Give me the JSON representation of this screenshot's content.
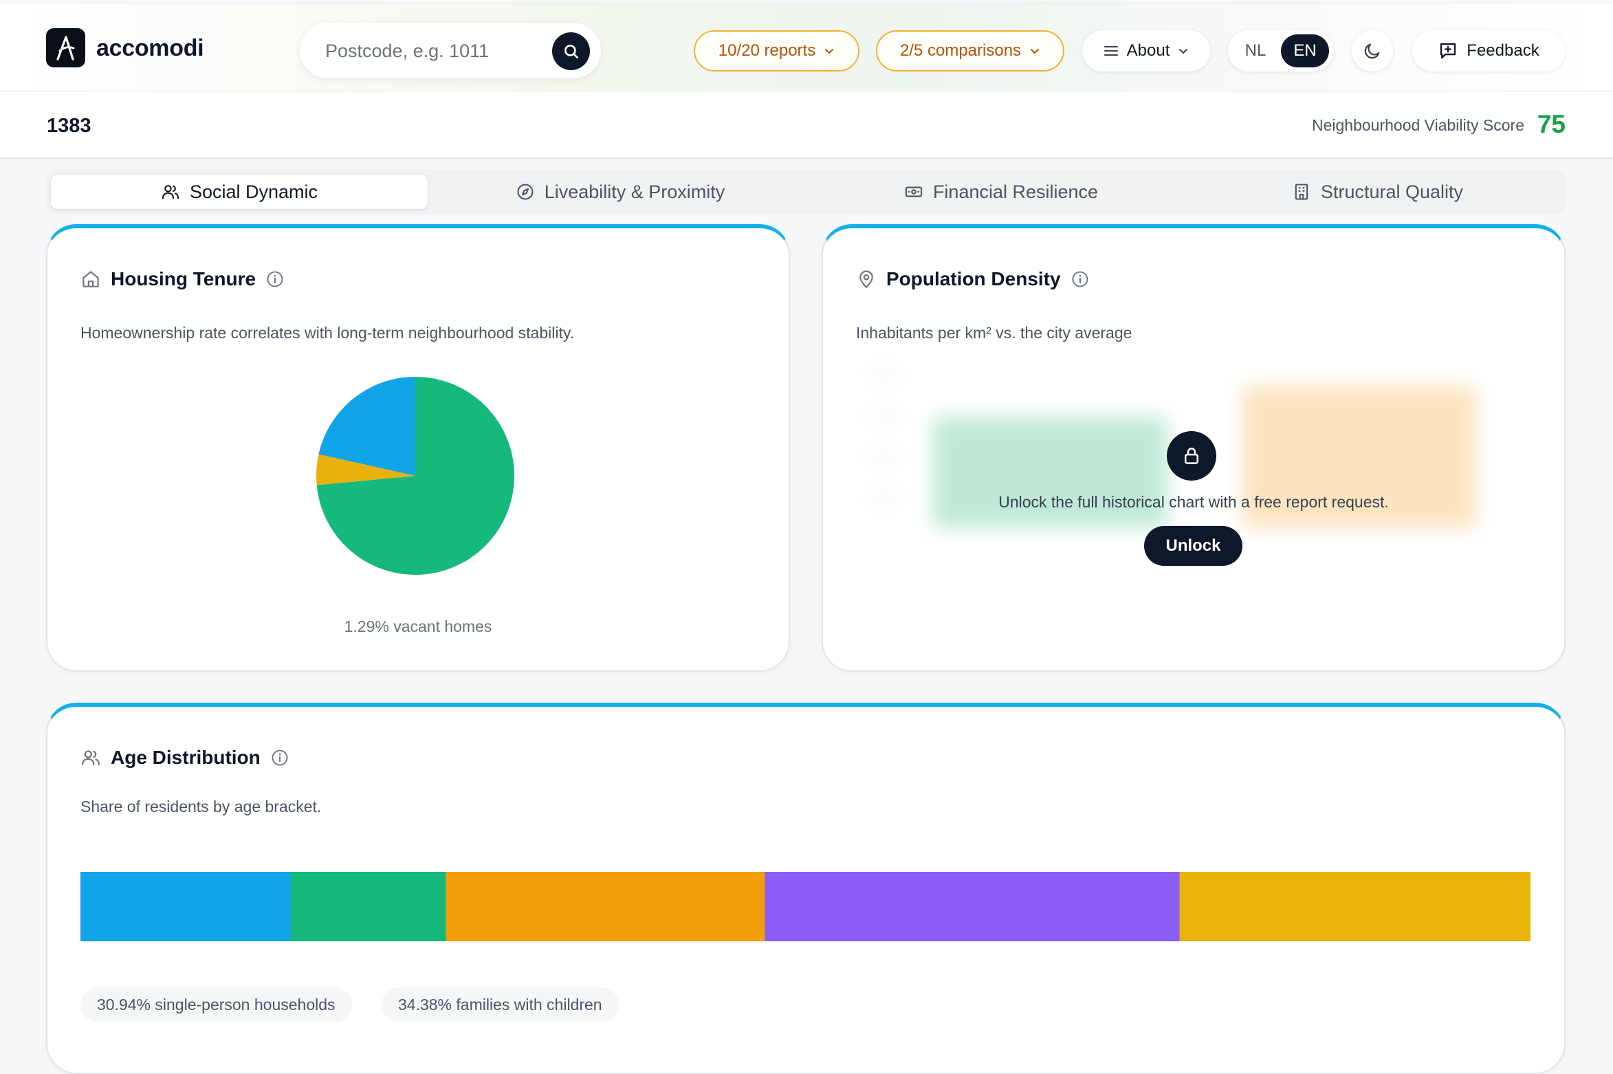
{
  "header": {
    "brand": "accomodi",
    "search_placeholder": "Postcode, e.g. 1011",
    "reports_label": "10/20 reports",
    "comparisons_label": "2/5 comparisons",
    "about_label": "About",
    "lang_nl": "NL",
    "lang_en": "EN",
    "feedback_label": "Feedback"
  },
  "subheader": {
    "postcode": "1383",
    "score_label": "Neighbourhood Viability Score",
    "score_value": "75"
  },
  "tabs": [
    {
      "label": "Social Dynamic",
      "icon": "users-icon",
      "active": true
    },
    {
      "label": "Liveability & Proximity",
      "icon": "compass-icon",
      "active": false
    },
    {
      "label": "Financial Resilience",
      "icon": "banknote-icon",
      "active": false
    },
    {
      "label": "Structural Quality",
      "icon": "building-icon",
      "active": false
    }
  ],
  "housing": {
    "title": "Housing Tenure",
    "description": "Homeownership rate correlates with long-term neighbourhood stability.",
    "footnote": "1.29% vacant homes"
  },
  "population": {
    "title": "Population Density",
    "description": "Inhabitants per km² vs. the city average",
    "lock_message": "Unlock the full historical chart with a free report request.",
    "unlock_label": "Unlock"
  },
  "age": {
    "title": "Age Distribution",
    "description": "Share of residents by age bracket.",
    "chip_single": "30.94% single-person households",
    "chip_families": "34.38% families with children"
  },
  "colors": {
    "accent": "#12b0eb",
    "score_green": "#16a34a",
    "pie_green": "#16b97c",
    "pie_blue": "#12a4e8",
    "pie_yellow": "#e8b10c",
    "age_blue": "#12a4e8",
    "age_green": "#16b97c",
    "age_orange": "#f59e0b",
    "age_purple": "#8b5cf6",
    "age_yellow": "#eab308"
  },
  "chart_data": [
    {
      "type": "pie",
      "title": "Housing Tenure",
      "slices": [
        {
          "value": 0.735,
          "color": "#16b97c"
        },
        {
          "value": 0.05,
          "color": "#e8b10c"
        },
        {
          "value": 0.215,
          "color": "#12a4e8"
        }
      ]
    },
    {
      "type": "bar",
      "title": "Age Distribution",
      "stacked": true,
      "segments": [
        {
          "value": 14.5,
          "color": "#12a4e8"
        },
        {
          "value": 10.7,
          "color": "#16b97c"
        },
        {
          "value": 22.0,
          "color": "#f59e0b"
        },
        {
          "value": 28.6,
          "color": "#8b5cf6"
        },
        {
          "value": 24.2,
          "color": "#eab308"
        }
      ]
    }
  ]
}
